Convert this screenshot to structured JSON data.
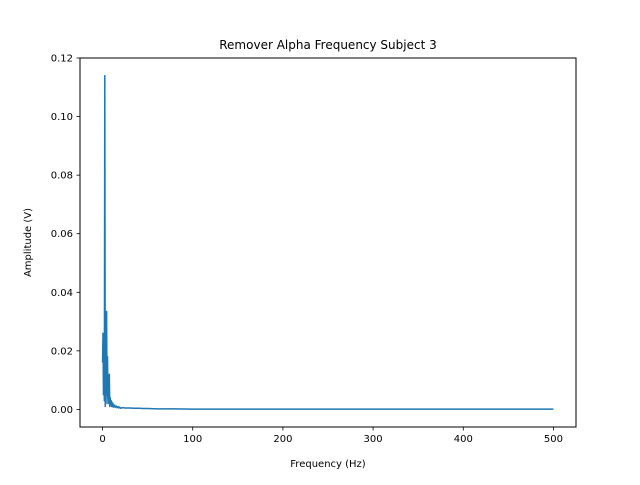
{
  "chart_data": {
    "type": "line",
    "title": "Remover Alpha Frequency Subject 3",
    "xlabel": "Frequency (Hz)",
    "ylabel": "Amplitude (V)",
    "xlim": [
      -25,
      525
    ],
    "ylim": [
      -0.006,
      0.12
    ],
    "xticks": [
      0,
      100,
      200,
      300,
      400,
      500
    ],
    "xtick_labels": [
      "0",
      "100",
      "200",
      "300",
      "400",
      "500"
    ],
    "yticks": [
      0.0,
      0.02,
      0.04,
      0.06,
      0.08,
      0.1,
      0.12
    ],
    "ytick_labels": [
      "0.00",
      "0.02",
      "0.04",
      "0.06",
      "0.08",
      "0.10",
      "0.12"
    ],
    "grid": false,
    "legend": "none",
    "series": [
      {
        "color": "#1f77b4",
        "x": [
          0,
          0.5,
          1,
          1.5,
          2,
          2.5,
          3,
          3.5,
          4,
          4.5,
          5,
          5.5,
          6,
          6.5,
          7,
          7.5,
          8,
          8.5,
          9,
          9.5,
          10,
          10.5,
          11,
          11.5,
          12,
          13,
          14,
          15,
          16,
          17,
          18,
          19,
          20,
          22,
          25,
          30,
          35,
          40,
          45,
          50,
          60,
          70,
          80,
          100,
          150,
          200,
          250,
          300,
          350,
          400,
          450,
          500
        ],
        "y": [
          0.016,
          0.026,
          0.005,
          0.015,
          0.003,
          0.114,
          0.001,
          0.02,
          0.005,
          0.0335,
          0.002,
          0.018,
          0.004,
          0.01,
          0.002,
          0.012,
          0.001,
          0.004,
          0.002,
          0.003,
          0.001,
          0.0025,
          0.001,
          0.002,
          0.0008,
          0.0015,
          0.0007,
          0.0012,
          0.0006,
          0.001,
          0.0005,
          0.0008,
          0.0004,
          0.0006,
          0.0005,
          0.0005,
          0.0004,
          0.0004,
          0.0003,
          0.0003,
          0.0002,
          0.0002,
          0.0002,
          0.0001,
          0.0001,
          0.0001,
          0.0001,
          0.0001,
          0.0001,
          0.0001,
          0.0001,
          0.0001
        ]
      }
    ]
  }
}
